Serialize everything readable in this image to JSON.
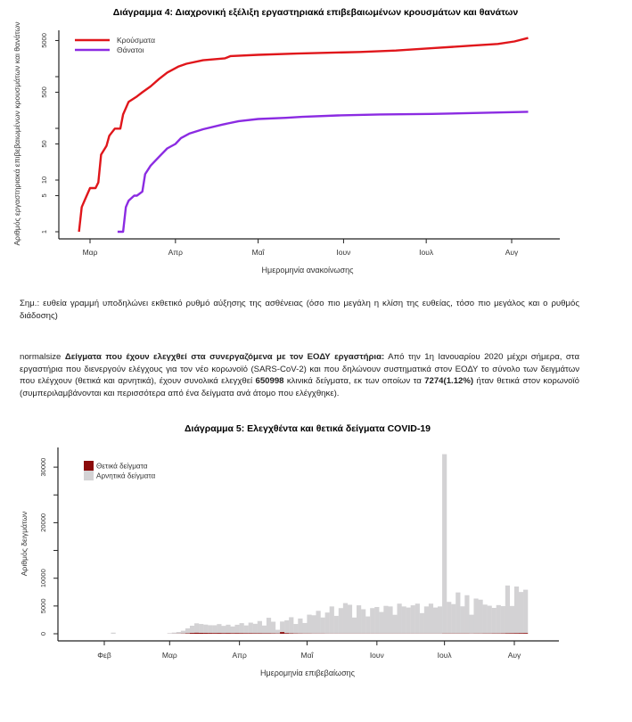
{
  "colors": {
    "cases": "#e0161b",
    "deaths": "#8b2be2",
    "positive": "#8b0a0a",
    "negative": "#d3d2d4",
    "axis": "#222222"
  },
  "chart_data": [
    {
      "type": "line",
      "title": "Διάγραμμα 4: Διαχρονική εξέλιξη εργαστηριακά επιβεβαιωμένων κρουσμάτων και θανάτων",
      "xlabel": "Ημερομηνία ανακοίνωσης",
      "ylabel": "Αριθμός εργαστηριακά επιβεβαιωμένων κρουσμάτων και θανάτων",
      "yscale": "log",
      "yticks": [
        1,
        5,
        10,
        50,
        500,
        5000
      ],
      "ytick_labels": [
        "1",
        "5",
        "10",
        "50",
        "500",
        "5000"
      ],
      "xticks": [
        "03-01",
        "04-01",
        "05-01",
        "06-01",
        "07-01",
        "08-01"
      ],
      "xtick_labels": [
        "Μαρ",
        "Απρ",
        "Μαΐ",
        "Ιουν",
        "Ιουλ",
        "Αυγ"
      ],
      "legend_position": "top-left",
      "grid": false,
      "series": [
        {
          "name": "Κρούσματα",
          "color": "#e0161b",
          "x": [
            "02-26",
            "02-27",
            "02-28",
            "03-01",
            "03-03",
            "03-04",
            "03-05",
            "03-07",
            "03-08",
            "03-10",
            "03-12",
            "03-13",
            "03-15",
            "03-18",
            "03-20",
            "03-23",
            "03-26",
            "03-29",
            "04-02",
            "04-05",
            "04-11",
            "04-19",
            "04-21",
            "05-01",
            "05-15",
            "06-07",
            "06-20",
            "07-03",
            "07-18",
            "07-27",
            "08-02",
            "08-07"
          ],
          "y": [
            1,
            3,
            4,
            7,
            7,
            9,
            31,
            46,
            72,
            99,
            99,
            186,
            326,
            415,
            500,
            650,
            900,
            1200,
            1560,
            1780,
            2080,
            2270,
            2500,
            2650,
            2800,
            3000,
            3200,
            3550,
            4000,
            4300,
            4800,
            5600
          ]
        },
        {
          "name": "Θάνατοι",
          "color": "#8b2be2",
          "x": [
            "03-11",
            "03-13",
            "03-14",
            "03-15",
            "03-17",
            "03-18",
            "03-20",
            "03-21",
            "03-23",
            "03-26",
            "03-29",
            "04-01",
            "04-03",
            "04-06",
            "04-11",
            "04-18",
            "04-24",
            "05-01",
            "05-11",
            "05-17",
            "05-30",
            "06-14",
            "07-03",
            "07-18",
            "08-07"
          ],
          "y": [
            1,
            1,
            3,
            4,
            5,
            5,
            6,
            13,
            19,
            28,
            41,
            50,
            65,
            79,
            96,
            118,
            138,
            152,
            160,
            167,
            178,
            186,
            190,
            198,
            209
          ]
        }
      ]
    },
    {
      "type": "bar",
      "stacked": true,
      "title": "Διάγραμμα 5: Ελεγχθέντα και θετικά δείγματα COVID-19",
      "xlabel": "Ημερομηνία επιβεβαίωσης",
      "ylabel": "Αριθμός δειγμάτων",
      "ylim": [
        0,
        33000
      ],
      "yticks": [
        0,
        5000,
        10000,
        15000,
        20000,
        25000,
        30000
      ],
      "ytick_labels": [
        "0",
        "5000",
        "10000",
        "",
        "20000",
        "",
        "30000"
      ],
      "xticks": [
        "02-01",
        "03-01",
        "04-01",
        "05-01",
        "06-01",
        "07-01",
        "08-01"
      ],
      "xtick_labels": [
        "Φεβ",
        "Μαρ",
        "Απρ",
        "Μαΐ",
        "Ιουν",
        "Ιουλ",
        "Αυγ"
      ],
      "legend_position": "top-left",
      "grid": false,
      "x": [
        "02-05",
        "03-01",
        "03-03",
        "03-05",
        "03-07",
        "03-09",
        "03-11",
        "03-13",
        "03-15",
        "03-17",
        "03-19",
        "03-21",
        "03-23",
        "03-25",
        "03-27",
        "03-29",
        "03-31",
        "04-02",
        "04-04",
        "04-06",
        "04-08",
        "04-10",
        "04-12",
        "04-14",
        "04-16",
        "04-18",
        "04-20",
        "04-22",
        "04-24",
        "04-26",
        "04-28",
        "04-30",
        "05-02",
        "05-04",
        "05-06",
        "05-08",
        "05-10",
        "05-12",
        "05-14",
        "05-16",
        "05-18",
        "05-20",
        "05-22",
        "05-24",
        "05-26",
        "05-28",
        "05-30",
        "06-01",
        "06-03",
        "06-05",
        "06-07",
        "06-09",
        "06-11",
        "06-13",
        "06-15",
        "06-17",
        "06-19",
        "06-21",
        "06-23",
        "06-25",
        "06-27",
        "06-29",
        "07-01",
        "07-03",
        "07-05",
        "07-07",
        "07-09",
        "07-11",
        "07-13",
        "07-15",
        "07-17",
        "07-19",
        "07-21",
        "07-23",
        "07-25",
        "07-27",
        "07-29",
        "07-31",
        "08-02",
        "08-04",
        "08-06"
      ],
      "series": [
        {
          "name": "Θετικά δείγματα",
          "color": "#8b0a0a",
          "values": [
            0,
            5,
            10,
            20,
            40,
            80,
            150,
            180,
            160,
            150,
            140,
            130,
            140,
            120,
            130,
            110,
            120,
            110,
            100,
            100,
            90,
            90,
            80,
            80,
            70,
            60,
            300,
            120,
            80,
            60,
            50,
            40,
            40,
            30,
            30,
            30,
            20,
            20,
            20,
            20,
            20,
            20,
            20,
            20,
            20,
            20,
            20,
            20,
            20,
            20,
            20,
            20,
            20,
            20,
            20,
            20,
            20,
            20,
            20,
            20,
            20,
            20,
            40,
            40,
            40,
            40,
            40,
            40,
            30,
            40,
            40,
            50,
            50,
            60,
            60,
            70,
            90,
            100,
            110,
            120,
            130
          ]
        },
        {
          "name": "Αρνητικά δείγματα",
          "color": "#d3d2d4",
          "values": [
            200,
            100,
            200,
            300,
            500,
            900,
            1300,
            1700,
            1600,
            1500,
            1400,
            1400,
            1600,
            1300,
            1500,
            1200,
            1500,
            1800,
            1400,
            1900,
            1700,
            2200,
            1400,
            2800,
            2100,
            650,
            1900,
            2300,
            2900,
            1700,
            2700,
            1900,
            3400,
            3300,
            4100,
            2900,
            3800,
            4900,
            3200,
            4600,
            5500,
            5200,
            2900,
            5100,
            4400,
            3100,
            4600,
            4800,
            3900,
            5000,
            4900,
            3400,
            5400,
            4900,
            4700,
            5100,
            5400,
            3700,
            4900,
            5400,
            4700,
            4900,
            32300,
            5700,
            5300,
            7400,
            4900,
            6900,
            3400,
            6300,
            6100,
            5200,
            5000,
            4600,
            5100,
            4900,
            8600,
            4900,
            8400,
            7400,
            7800
          ]
        }
      ]
    }
  ],
  "note": "Σημ.: ευθεία γραμμή υποδηλώνει εκθετικό ρυθμό αύξησης της ασθένειας (όσο πιο μεγάλη η κλίση της ευθείας, τόσο πιο μεγάλος και ο ρυθμός διάδοσης)",
  "paragraph": {
    "prefix": "normalsize ",
    "heading": "Δείγματα που έχουν ελεγχθεί στα συνεργαζόμενα με τον ΕΟΔΥ εργαστήρια:",
    "text1": " Από την 1η Ιανουαρίου 2020 μέχρι σήμερα, στα εργαστήρια που διενεργούν ελέγχους για τον νέο κορωνοϊό (SARS-CoV-2) και που δηλώνουν συστηματικά στον ΕΟΔΥ το σύνολο των δειγμάτων που ελέγχουν (θετικά και αρνητικά), έχουν συνολικά ελεγχθεί ",
    "total_samples": "650998",
    "text2": " κλινικά δείγματα, εκ των οποίων τα ",
    "positive_samples": "7274(1.12%)",
    "text3": " ήταν θετικά στον κορωνοϊό (συμπεριλαμβάνονται και περισσότερα από ένα δείγματα ανά άτομο που ελέγχθηκε)."
  }
}
